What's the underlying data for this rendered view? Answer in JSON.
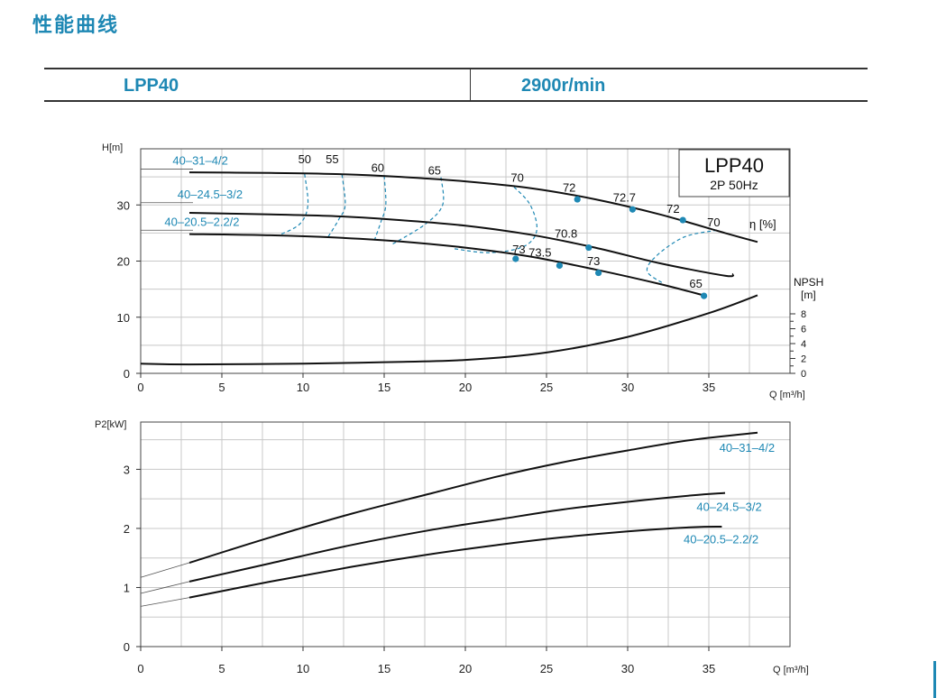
{
  "page": {
    "title": "性能曲线",
    "model": "LPP40",
    "speed": "2900r/min"
  },
  "colors": {
    "accent": "#1e88b4",
    "curve": "#111111",
    "grid": "#c8c8c8"
  },
  "chart_data": [
    {
      "type": "line",
      "name": "performance",
      "ylabel": "H[m]",
      "xlabel": "Q [m³/h]",
      "xlim": [
        0,
        40
      ],
      "ylim": [
        0,
        40
      ],
      "xticks": [
        0,
        5,
        10,
        15,
        20,
        25,
        30,
        35
      ],
      "yticks": [
        0,
        10,
        20,
        30
      ],
      "grid": true,
      "legend_box": {
        "title": "LPP40",
        "subtitle": "2P  50Hz"
      },
      "eta_label": "η [%]",
      "series": [
        {
          "name": "40–31–4/2",
          "label_pos": [
            1.3,
            37.2
          ],
          "x": [
            3,
            8,
            12,
            16,
            20,
            24,
            28,
            32,
            36,
            38
          ],
          "y": [
            35.8,
            35.7,
            35.5,
            35.0,
            34.2,
            33.0,
            31.0,
            28.3,
            25.0,
            23.4
          ]
        },
        {
          "name": "40–24.5–3/2",
          "label_pos": [
            1.6,
            31.2
          ],
          "x": [
            3,
            8,
            12,
            16,
            20,
            24,
            28,
            32,
            36,
            36.5
          ],
          "y": [
            28.6,
            28.3,
            28.0,
            27.3,
            26.3,
            24.7,
            22.4,
            19.6,
            17.4,
            17.7
          ]
        },
        {
          "name": "40–20.5–2.2/2",
          "label_pos": [
            0.8,
            26.3
          ],
          "x": [
            3,
            8,
            12,
            16,
            20,
            24,
            28,
            32,
            34.8
          ],
          "y": [
            24.8,
            24.6,
            24.2,
            23.5,
            22.4,
            20.8,
            18.5,
            15.9,
            13.8
          ]
        }
      ],
      "efficiency_points": [
        {
          "label": "72",
          "x": 26.9,
          "y": 31.0,
          "lx": 26.4,
          "ly": 32.4
        },
        {
          "label": "72.7",
          "x": 30.3,
          "y": 29.2,
          "lx": 29.8,
          "ly": 30.6
        },
        {
          "label": "72",
          "x": 33.4,
          "y": 27.3,
          "lx": 32.8,
          "ly": 28.6
        },
        {
          "label": "70.8",
          "x": 27.6,
          "y": 22.4,
          "lx": 26.2,
          "ly": 24.2
        },
        {
          "label": "73",
          "x": 23.1,
          "y": 20.4,
          "lx": 23.3,
          "ly": 21.4
        },
        {
          "label": "73.5",
          "x": 25.8,
          "y": 19.2,
          "lx": 24.6,
          "ly": 20.8
        },
        {
          "label": "73",
          "x": 28.2,
          "y": 17.9,
          "lx": 27.9,
          "ly": 19.3
        },
        {
          "label": "65",
          "x": 34.7,
          "y": 13.8,
          "lx": 34.2,
          "ly": 15.3
        }
      ],
      "efficiency_labels": [
        {
          "label": "50",
          "x": 10.1,
          "y": 37.4
        },
        {
          "label": "55",
          "x": 11.8,
          "y": 37.4
        },
        {
          "label": "60",
          "x": 14.6,
          "y": 35.9
        },
        {
          "label": "65",
          "x": 18.1,
          "y": 35.4
        },
        {
          "label": "70",
          "x": 23.2,
          "y": 34.1
        },
        {
          "label": "70",
          "x": 35.3,
          "y": 26.2
        }
      ],
      "iso_eff": [
        {
          "x": [
            10.1,
            10.3,
            9.8,
            8.5
          ],
          "y": [
            35.5,
            30,
            26.6,
            24.6
          ]
        },
        {
          "x": [
            12.4,
            12.6,
            12.2,
            11.5
          ],
          "y": [
            35.4,
            30,
            27.4,
            24.1
          ]
        },
        {
          "x": [
            15.0,
            15.1,
            14.8,
            14.4
          ],
          "y": [
            35.2,
            30,
            27.0,
            23.7
          ]
        },
        {
          "x": [
            18.5,
            18.6,
            17.5,
            15.5
          ],
          "y": [
            34.9,
            30,
            26.5,
            23.0
          ]
        },
        {
          "x": [
            23.0,
            24.0,
            24.4,
            23.6,
            21.5,
            19.3
          ],
          "y": [
            33.2,
            30.0,
            25.5,
            22.6,
            21.5,
            22.2
          ]
        },
        {
          "x": [
            35.5,
            33.5,
            31.8,
            31.2,
            32.2
          ],
          "y": [
            25.5,
            24.3,
            21.0,
            18.2,
            16.0
          ]
        }
      ],
      "npsh": {
        "label": "NPSH",
        "unit": "[m]",
        "ylim": [
          0,
          8
        ],
        "ticks": [
          0,
          2,
          4,
          6,
          8
        ],
        "x": [
          0,
          3,
          10,
          15,
          20,
          25,
          30,
          35,
          38
        ],
        "y": [
          1.3,
          1.2,
          1.3,
          1.5,
          1.8,
          2.8,
          4.9,
          8.1,
          10.5
        ]
      }
    },
    {
      "type": "line",
      "name": "power",
      "ylabel": "P2[kW]",
      "xlabel": "Q [m³/h]",
      "xlim": [
        0,
        40
      ],
      "ylim": [
        0,
        3.8
      ],
      "xticks": [
        0,
        5,
        10,
        15,
        20,
        25,
        30,
        35
      ],
      "yticks": [
        0,
        1,
        2,
        3
      ],
      "grid": true,
      "series": [
        {
          "name": "40–31–4/2",
          "label_pos": [
            35.2,
            3.3
          ],
          "x": [
            3,
            8,
            13,
            18,
            22,
            26,
            30,
            34,
            38
          ],
          "y": [
            1.42,
            1.85,
            2.25,
            2.6,
            2.88,
            3.12,
            3.32,
            3.5,
            3.62
          ],
          "ext_x": [
            0,
            3
          ],
          "ext_y": [
            1.17,
            1.42
          ]
        },
        {
          "name": "40–24.5–3/2",
          "label_pos": [
            33.8,
            2.3
          ],
          "x": [
            3,
            8,
            13,
            18,
            22,
            26,
            30,
            34,
            36
          ],
          "y": [
            1.1,
            1.41,
            1.72,
            1.98,
            2.15,
            2.32,
            2.45,
            2.56,
            2.6
          ],
          "ext_x": [
            0,
            3
          ],
          "ext_y": [
            0.9,
            1.1
          ]
        },
        {
          "name": "40–20.5–2.2/2",
          "label_pos": [
            33.0,
            1.75
          ],
          "x": [
            3,
            8,
            13,
            18,
            22,
            26,
            30,
            34,
            35.8
          ],
          "y": [
            0.83,
            1.1,
            1.35,
            1.57,
            1.72,
            1.85,
            1.95,
            2.02,
            2.03
          ],
          "ext_x": [
            0,
            3
          ],
          "ext_y": [
            0.68,
            0.83
          ]
        }
      ]
    }
  ]
}
